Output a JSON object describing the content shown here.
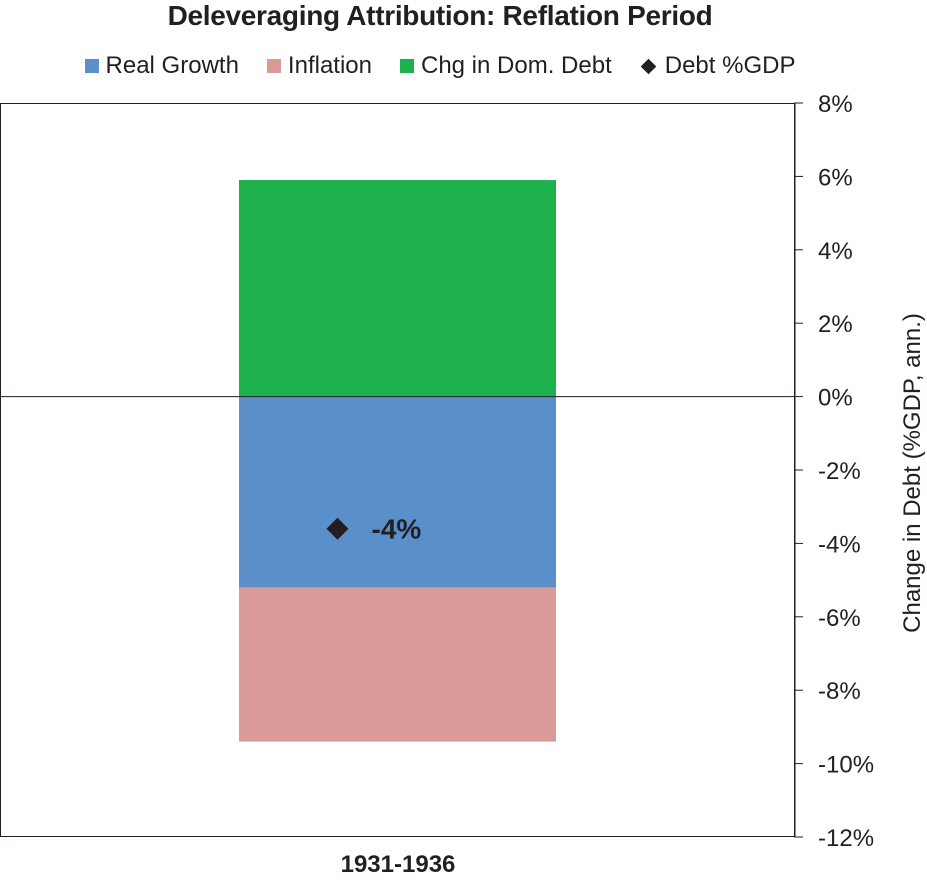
{
  "chart_data": {
    "type": "bar",
    "stacked": true,
    "title": "Deleveraging Attribution: Reflation Period",
    "ylabel": "Change in Debt (%GDP, ann.)",
    "xlabel": "",
    "categories": [
      "1931-1936"
    ],
    "ylim": [
      -12,
      8
    ],
    "yticks": [
      8,
      6,
      4,
      2,
      0,
      -2,
      -4,
      -6,
      -8,
      -10,
      -12
    ],
    "ytick_labels": [
      "8%",
      "6%",
      "4%",
      "2%",
      "0%",
      "-2%",
      "-4%",
      "-6%",
      "-8%",
      "-10%",
      "-12%"
    ],
    "y_axis_side": "right",
    "grid": false,
    "legend_position": "top",
    "series": [
      {
        "name": "Real Growth",
        "type": "bar",
        "color": "#5b8fca",
        "values": [
          -5.2
        ]
      },
      {
        "name": "Inflation",
        "type": "bar",
        "color": "#d99a99",
        "values": [
          -4.2
        ]
      },
      {
        "name": "Chg in Dom. Debt",
        "type": "bar",
        "color": "#1cb14d",
        "values": [
          5.9
        ]
      },
      {
        "name": "Debt %GDP",
        "type": "marker",
        "marker": "diamond",
        "color": "#231f20",
        "values": [
          -3.6
        ]
      }
    ],
    "annotations": [
      {
        "text": "-4%",
        "series": "Debt %GDP",
        "category": "1931-1936"
      }
    ]
  }
}
